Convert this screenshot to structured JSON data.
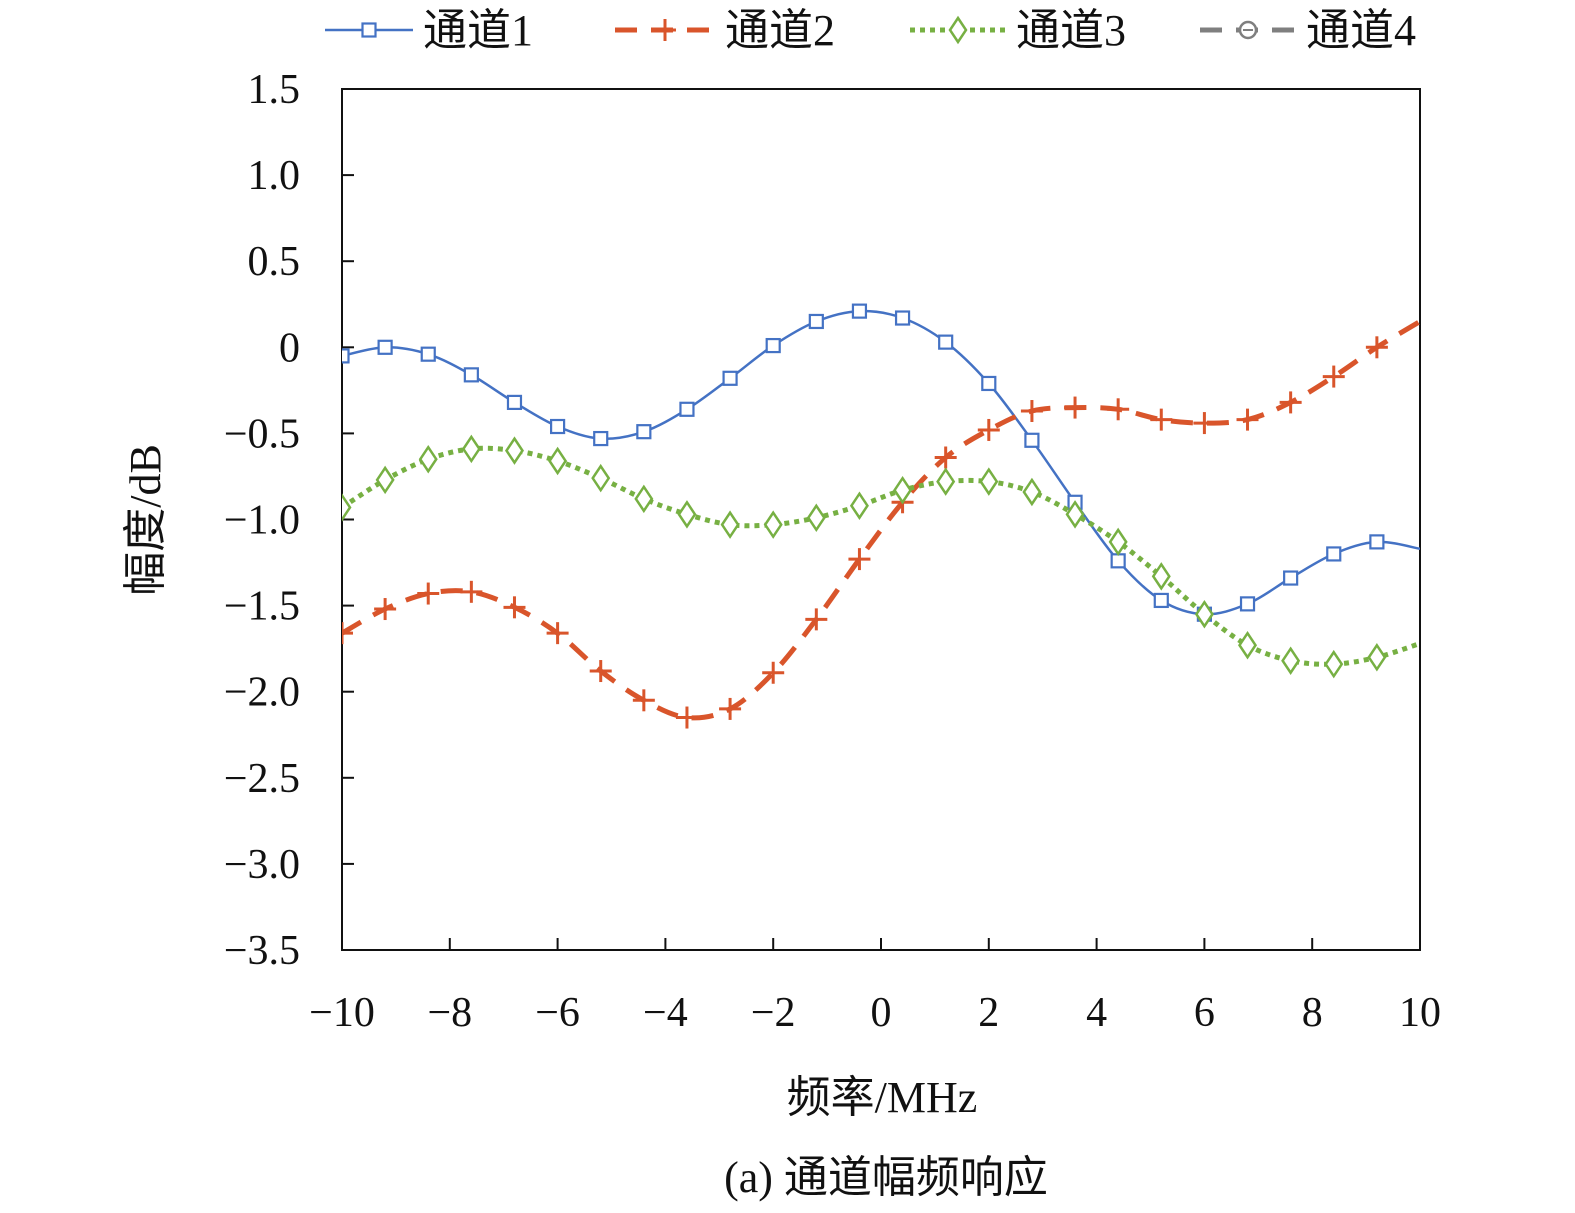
{
  "chart_data": {
    "type": "line",
    "title": "",
    "caption": "(a) 通道幅频响应",
    "xlabel": "频率/MHz",
    "ylabel": "幅度/dB",
    "xlim": [
      -10,
      10
    ],
    "ylim": [
      -3.5,
      1.5
    ],
    "x_ticks": [
      -10,
      -8,
      -6,
      -4,
      -2,
      0,
      2,
      4,
      6,
      8,
      10
    ],
    "x_tick_labels": [
      "−10",
      "−8",
      "−6",
      "−4",
      "−2",
      "0",
      "2",
      "4",
      "6",
      "8",
      "10"
    ],
    "y_ticks": [
      1.5,
      1.0,
      0.5,
      0,
      -0.5,
      -1.0,
      -1.5,
      -2.0,
      -2.5,
      -3.0,
      -3.5
    ],
    "y_tick_labels": [
      "1.5",
      "1.0",
      "0.5",
      "0",
      "−0.5",
      "−1.0",
      "−1.5",
      "−2.0",
      "−2.5",
      "−3.0",
      "−3.5"
    ],
    "grid": false,
    "legend_position": "top",
    "marker_x": [
      -10,
      -9.2,
      -8.4,
      -7.6,
      -6.8,
      -6.0,
      -5.2,
      -4.4,
      -3.6,
      -2.8,
      -2.0,
      -1.2,
      -0.4,
      0.4,
      1.2,
      2.0,
      2.8,
      3.6,
      4.4,
      5.2,
      6.0,
      6.8,
      7.6,
      8.4,
      9.2
    ],
    "line_x": [
      -10,
      -9.2,
      -8.4,
      -7.6,
      -6.8,
      -6.0,
      -5.2,
      -4.4,
      -3.6,
      -2.8,
      -2.0,
      -1.2,
      -0.4,
      0.4,
      1.2,
      2.0,
      2.8,
      3.6,
      4.4,
      5.2,
      6.0,
      6.8,
      7.6,
      8.4,
      9.2,
      10.0
    ],
    "series": [
      {
        "name": "通道1",
        "color": "#4472c4",
        "style": "solid",
        "marker": "square",
        "values": [
          -0.05,
          0.0,
          -0.04,
          -0.16,
          -0.32,
          -0.46,
          -0.53,
          -0.49,
          -0.36,
          -0.18,
          0.01,
          0.15,
          0.21,
          0.17,
          0.03,
          -0.21,
          -0.54,
          -0.9,
          -1.24,
          -1.47,
          -1.55,
          -1.49,
          -1.34,
          -1.2,
          -1.13,
          -1.17
        ]
      },
      {
        "name": "通道2",
        "color": "#d9552b",
        "style": "dashed",
        "marker": "plus",
        "values": [
          -1.66,
          -1.52,
          -1.43,
          -1.42,
          -1.51,
          -1.66,
          -1.88,
          -2.05,
          -2.15,
          -2.1,
          -1.89,
          -1.58,
          -1.23,
          -0.9,
          -0.64,
          -0.48,
          -0.37,
          -0.35,
          -0.36,
          -0.42,
          -0.44,
          -0.42,
          -0.32,
          -0.17,
          0.0,
          0.15
        ]
      },
      {
        "name": "通道3",
        "color": "#77b043",
        "style": "dotted",
        "marker": "diamond",
        "values": [
          -0.93,
          -0.77,
          -0.65,
          -0.59,
          -0.6,
          -0.66,
          -0.76,
          -0.88,
          -0.97,
          -1.03,
          -1.03,
          -0.99,
          -0.92,
          -0.83,
          -0.78,
          -0.78,
          -0.84,
          -0.97,
          -1.13,
          -1.33,
          -1.55,
          -1.73,
          -1.82,
          -1.84,
          -1.8,
          -1.72
        ]
      },
      {
        "name": "通道4",
        "color": "#7f7f7f",
        "style": "dashed",
        "marker": "circle",
        "values": []
      }
    ]
  }
}
